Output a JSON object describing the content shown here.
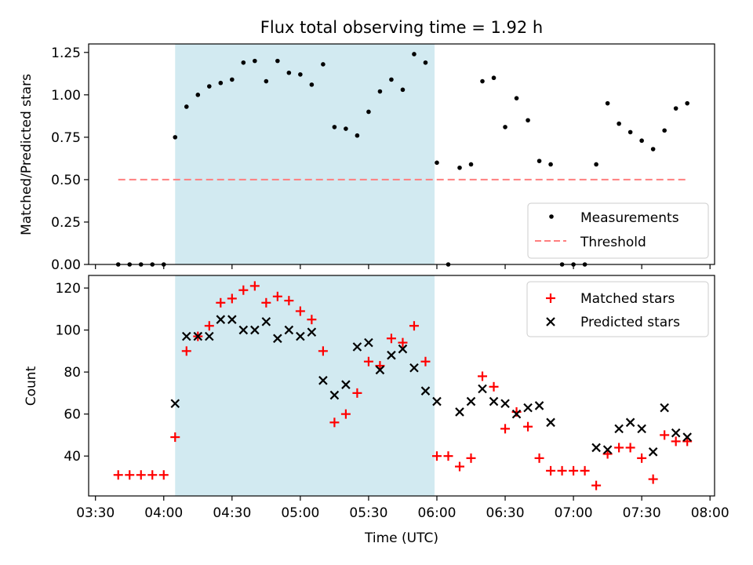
{
  "title": "Flux total observing time = 1.92 h",
  "colors": {
    "measurement": "#000000",
    "threshold": "#ff7f7f",
    "matched": "#ff0000",
    "predicted": "#000000",
    "shade": "#add8e6"
  },
  "chart_data": [
    {
      "type": "scatter",
      "panel": "top",
      "ylabel": "Matched/Predicted stars",
      "xlabel": "",
      "ylim": [
        0,
        1.3
      ],
      "xlim": [
        "03:27",
        "08:02"
      ],
      "yticks": [
        0.0,
        0.25,
        0.5,
        0.75,
        1.0,
        1.25
      ],
      "ytick_labels": [
        "0.00",
        "0.25",
        "0.50",
        "0.75",
        "1.00",
        "1.25"
      ],
      "shaded_interval": [
        "04:05",
        "05:59"
      ],
      "legend_placement": "lower-right",
      "legend": [
        "Measurements",
        "Threshold"
      ],
      "series": [
        {
          "name": "Measurements",
          "kind": "points",
          "x": [
            "03:40",
            "03:45",
            "03:50",
            "03:55",
            "04:00",
            "04:05",
            "04:10",
            "04:15",
            "04:20",
            "04:25",
            "04:30",
            "04:35",
            "04:40",
            "04:45",
            "04:50",
            "04:55",
            "05:00",
            "05:05",
            "05:10",
            "05:15",
            "05:20",
            "05:25",
            "05:30",
            "05:35",
            "05:40",
            "05:45",
            "05:50",
            "05:55",
            "06:00",
            "06:05",
            "06:10",
            "06:15",
            "06:20",
            "06:25",
            "06:30",
            "06:35",
            "06:40",
            "06:45",
            "06:50",
            "06:55",
            "07:00",
            "07:05",
            "07:10",
            "07:15",
            "07:20",
            "07:25",
            "07:30",
            "07:35",
            "07:40",
            "07:45",
            "07:50"
          ],
          "y": [
            0,
            0,
            0,
            0,
            0,
            0.75,
            0.93,
            1.0,
            1.05,
            1.07,
            1.09,
            1.19,
            1.2,
            1.08,
            1.2,
            1.13,
            1.12,
            1.06,
            1.18,
            0.81,
            0.8,
            0.76,
            0.9,
            1.02,
            1.09,
            1.03,
            1.24,
            1.19,
            0.6,
            0,
            0.57,
            0.59,
            1.08,
            1.1,
            0.81,
            0.98,
            0.85,
            0.61,
            0.59,
            0,
            0,
            0,
            0.59,
            0.95,
            0.83,
            0.78,
            0.73,
            0.68,
            0.79,
            0.92,
            0.95
          ]
        },
        {
          "name": "Threshold",
          "kind": "dashed-line",
          "x": [
            "03:40",
            "07:50"
          ],
          "y": [
            0.5,
            0.5
          ]
        }
      ]
    },
    {
      "type": "scatter",
      "panel": "bottom",
      "ylabel": "Count",
      "xlabel": "Time (UTC)",
      "ylim": [
        21,
        126
      ],
      "xlim": [
        "03:27",
        "08:02"
      ],
      "yticks": [
        40,
        60,
        80,
        100,
        120
      ],
      "ytick_labels": [
        "40",
        "60",
        "80",
        "100",
        "120"
      ],
      "xtick_labels": [
        "03:30",
        "04:00",
        "04:30",
        "05:00",
        "05:30",
        "06:00",
        "06:30",
        "07:00",
        "07:30",
        "08:00"
      ],
      "shaded_interval": [
        "04:05",
        "05:59"
      ],
      "legend_placement": "top-right",
      "legend": [
        "Matched stars",
        "Predicted stars"
      ],
      "series": [
        {
          "name": "Matched stars",
          "marker": "+",
          "x": [
            "03:40",
            "03:45",
            "03:50",
            "03:55",
            "04:00",
            "04:05",
            "04:10",
            "04:15",
            "04:20",
            "04:25",
            "04:30",
            "04:35",
            "04:40",
            "04:45",
            "04:50",
            "04:55",
            "05:00",
            "05:05",
            "05:10",
            "05:15",
            "05:20",
            "05:25",
            "05:30",
            "05:35",
            "05:40",
            "05:45",
            "05:50",
            "05:55",
            "06:00",
            "06:05",
            "06:10",
            "06:15",
            "06:20",
            "06:25",
            "06:30",
            "06:35",
            "06:40",
            "06:45",
            "06:50",
            "06:55",
            "07:00",
            "07:05",
            "07:10",
            "07:15",
            "07:20",
            "07:25",
            "07:30",
            "07:35",
            "07:40",
            "07:45",
            "07:50"
          ],
          "y": [
            31,
            31,
            31,
            31,
            31,
            49,
            90,
            97,
            102,
            113,
            115,
            119,
            121,
            113,
            116,
            114,
            109,
            105,
            90,
            56,
            60,
            70,
            85,
            83,
            96,
            94,
            102,
            85,
            40,
            40,
            35,
            39,
            78,
            73,
            53,
            61,
            54,
            39,
            33,
            33,
            33,
            33,
            26,
            41,
            44,
            44,
            39,
            29,
            50,
            47,
            47
          ]
        },
        {
          "name": "Predicted stars",
          "marker": "x",
          "x": [
            "04:05",
            "04:10",
            "04:15",
            "04:20",
            "04:25",
            "04:30",
            "04:35",
            "04:40",
            "04:45",
            "04:50",
            "04:55",
            "05:00",
            "05:05",
            "05:10",
            "05:15",
            "05:20",
            "05:25",
            "05:30",
            "05:35",
            "05:40",
            "05:45",
            "05:50",
            "05:55",
            "06:00",
            "06:10",
            "06:15",
            "06:20",
            "06:25",
            "06:30",
            "06:35",
            "06:40",
            "06:45",
            "06:50",
            "07:10",
            "07:15",
            "07:20",
            "07:25",
            "07:30",
            "07:35",
            "07:40",
            "07:45",
            "07:50"
          ],
          "y": [
            65,
            97,
            97,
            97,
            105,
            105,
            100,
            100,
            104,
            96,
            100,
            97,
            99,
            76,
            69,
            74,
            92,
            94,
            81,
            88,
            91,
            82,
            71,
            66,
            61,
            66,
            72,
            66,
            65,
            60,
            63,
            64,
            56,
            44,
            43,
            53,
            56,
            53,
            42,
            63,
            51,
            49
          ]
        }
      ]
    }
  ]
}
